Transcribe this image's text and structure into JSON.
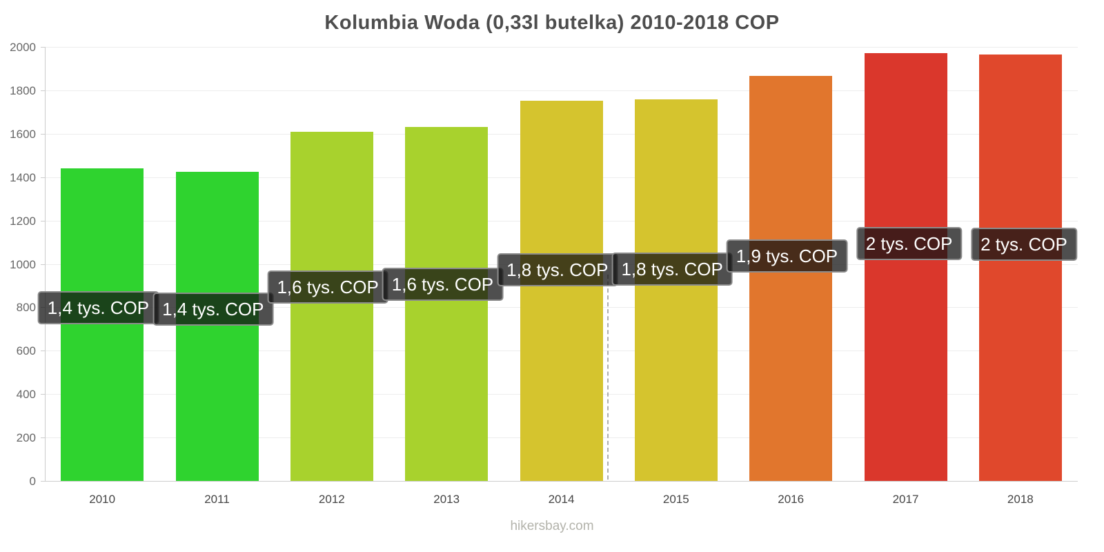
{
  "title": "Kolumbia Woda (0,33l butelka) 2010-2018 COP",
  "footer": "hikersbay.com",
  "chart_data": {
    "type": "bar",
    "title": "Kolumbia Woda (0,33l butelka) 2010-2018 COP",
    "categories": [
      "2010",
      "2011",
      "2012",
      "2013",
      "2014",
      "2015",
      "2016",
      "2017",
      "2018"
    ],
    "values": [
      1440,
      1425,
      1610,
      1632,
      1752,
      1757,
      1865,
      1972,
      1964
    ],
    "value_labels": [
      "1,4 tys. COP",
      "1,4 tys. COP",
      "1,6 tys. COP",
      "1,6 tys. COP",
      "1,8 tys. COP",
      "1,8 tys. COP",
      "1,9 tys. COP",
      "2 tys. COP",
      "2 tys. COP"
    ],
    "bar_colors": [
      "#2fd32f",
      "#2fd32f",
      "#a8d22d",
      "#a8d22d",
      "#d5c42e",
      "#d5c42e",
      "#e1762d",
      "#da372c",
      "#e0482c"
    ],
    "xlabel": "",
    "ylabel": "",
    "ylim": [
      0,
      2000
    ],
    "yticks": [
      0,
      200,
      400,
      600,
      800,
      1000,
      1200,
      1400,
      1600,
      1800,
      2000
    ],
    "grid": true,
    "legend": "none",
    "tooltip_style": {
      "background": "rgba(20,20,20,0.75)",
      "border_color": "#8c8c8c",
      "text_color": "#ffffff"
    },
    "crosshair_x": 880
  }
}
